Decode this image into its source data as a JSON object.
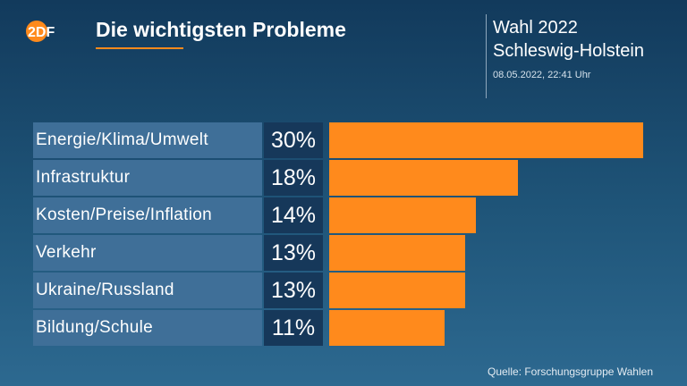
{
  "header": {
    "logo_text": "2DF",
    "title": "Die wichtigsten Probleme",
    "election_line1": "Wahl 2022",
    "election_line2": "Schleswig-Holstein",
    "timestamp": "08.05.2022, 22:41 Uhr"
  },
  "footer": {
    "source": "Quelle: Forschungsgruppe Wahlen"
  },
  "colors": {
    "accent": "#ff8a1c",
    "label_bg": "#3f6f98",
    "value_bg": "#16385a"
  },
  "chart_data": {
    "type": "bar",
    "orientation": "horizontal",
    "title": "Die wichtigsten Probleme",
    "categories": [
      "Energie/Klima/Umwelt",
      "Infrastruktur",
      "Kosten/Preise/Inflation",
      "Verkehr",
      "Ukraine/Russland",
      "Bildung/Schule"
    ],
    "values": [
      30,
      18,
      14,
      13,
      13,
      11
    ],
    "value_labels": [
      "30%",
      "18%",
      "14%",
      "13%",
      "13%",
      "11%"
    ],
    "unit": "%",
    "xlim": [
      0,
      30
    ],
    "grid": false,
    "legend": "none"
  }
}
